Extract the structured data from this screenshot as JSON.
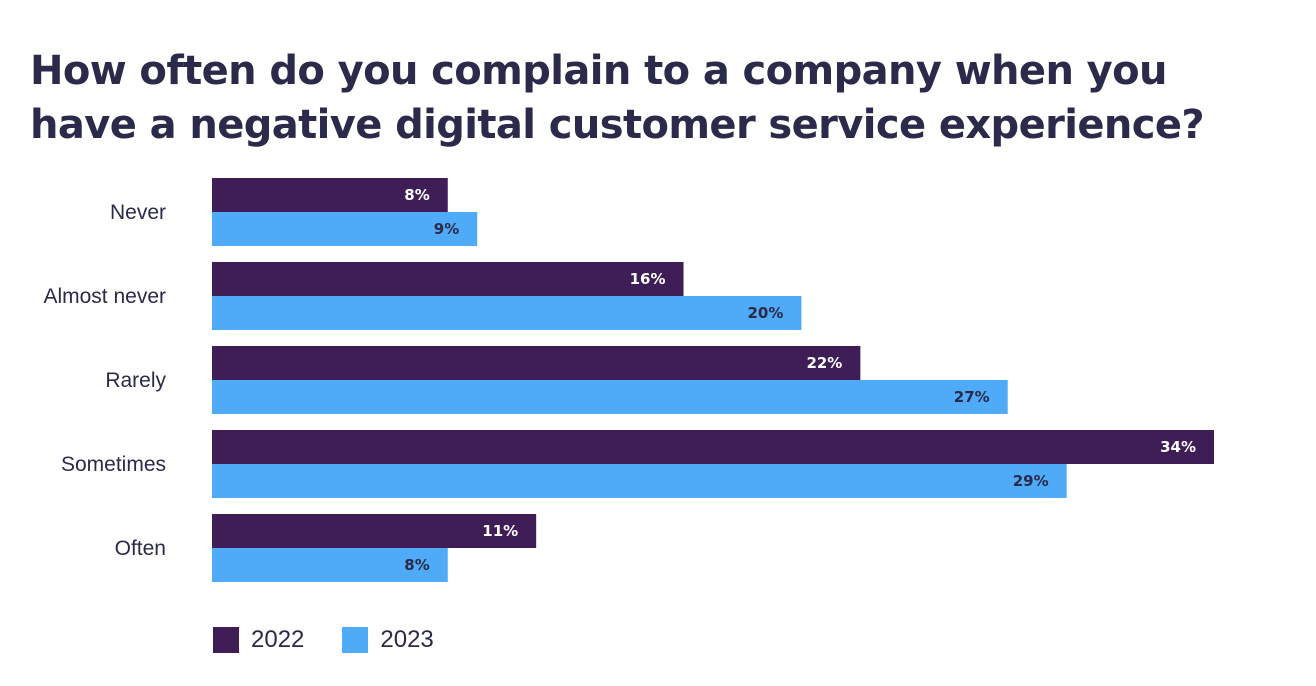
{
  "colors": {
    "series_2022": "#3f1d57",
    "series_2023": "#4faaf7",
    "label_on_2022": "#ffffff",
    "label_on_2023": "#2b2a4a"
  },
  "chart_data": {
    "type": "bar",
    "orientation": "horizontal",
    "title": "How often do you complain to a company when you have a negative digital customer service experience?",
    "xlabel": "",
    "ylabel": "",
    "categories": [
      "Never",
      "Almost never",
      "Rarely",
      "Sometimes",
      "Often"
    ],
    "series": [
      {
        "name": "2022",
        "values": [
          8,
          16,
          22,
          34,
          11
        ],
        "labels": [
          "8%",
          "16%",
          "22%",
          "34%",
          "11%"
        ]
      },
      {
        "name": "2023",
        "values": [
          9,
          20,
          27,
          29,
          8
        ],
        "labels": [
          "9%",
          "20%",
          "27%",
          "29%",
          "8%"
        ]
      }
    ],
    "xlim": [
      0,
      34
    ],
    "grid": false,
    "legend": "bottom-left"
  }
}
